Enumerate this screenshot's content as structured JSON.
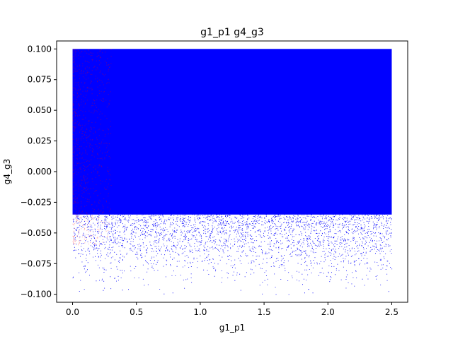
{
  "chart_data": {
    "type": "scatter",
    "title": "g1_p1  g4_g3",
    "xlabel": "g1_p1",
    "ylabel": "g4_g3",
    "xlim": [
      -0.125,
      2.625
    ],
    "ylim": [
      -0.1065,
      0.1065
    ],
    "xticks": [
      0.0,
      0.5,
      1.0,
      1.5,
      2.0,
      2.5
    ],
    "xtick_labels": [
      "0.0",
      "0.5",
      "1.0",
      "1.5",
      "2.0",
      "2.5"
    ],
    "yticks": [
      -0.1,
      -0.075,
      -0.05,
      -0.025,
      0.0,
      0.025,
      0.05,
      0.075,
      0.1
    ],
    "ytick_labels": [
      "−0.100",
      "−0.075",
      "−0.050",
      "−0.025",
      "0.000",
      "0.025",
      "0.050",
      "0.075",
      "0.100"
    ],
    "grid": false,
    "series": [
      {
        "color": "#0000ff",
        "x_range": [
          0.0,
          2.5
        ],
        "y_range": [
          -0.1,
          0.1
        ],
        "density_profile": {
          "y": [
            -0.1,
            -0.09,
            -0.08,
            -0.07,
            -0.06,
            -0.05,
            -0.04,
            -0.02,
            0.0,
            0.05,
            0.1
          ],
          "relative_density": [
            0.01,
            0.04,
            0.12,
            0.25,
            0.42,
            0.6,
            0.75,
            0.9,
            1.0,
            1.0,
            1.0
          ]
        }
      },
      {
        "color": "#ff0000",
        "x_range": [
          0.0,
          0.3
        ],
        "y_range": [
          -0.06,
          0.1
        ],
        "relative_density": 0.12
      }
    ]
  }
}
